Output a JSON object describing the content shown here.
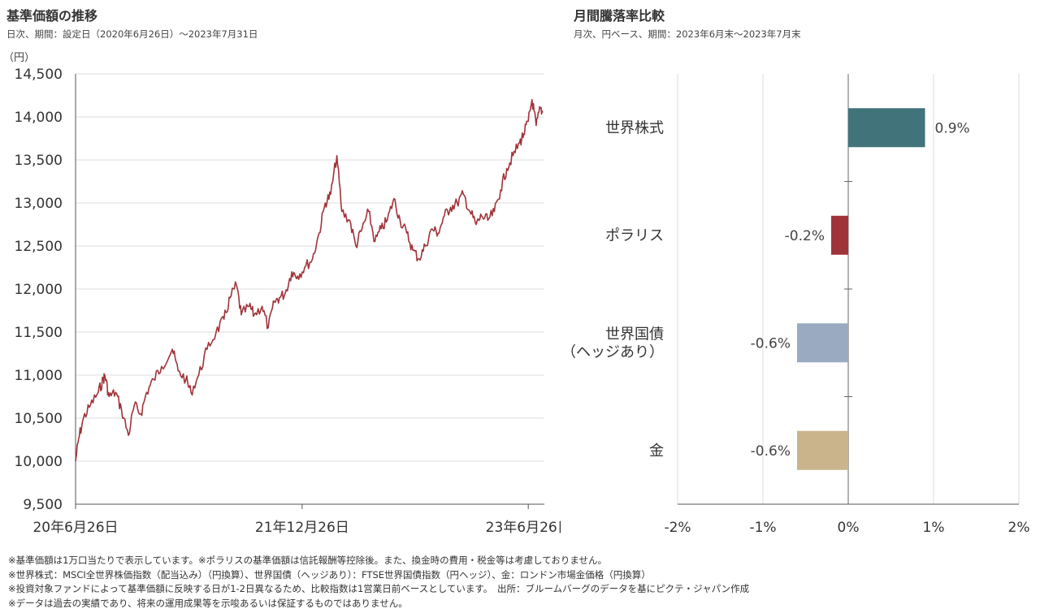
{
  "left_panel": {
    "title": "基準価額の推移",
    "subtitle": "日次、期間：設定日（2020年6月26日）～2023年7月31日",
    "unit": "（円）"
  },
  "right_panel": {
    "title": "月間騰落率比較",
    "subtitle": "月次、円ベース、期間：2023年6月末～2023年7月末"
  },
  "notes": [
    "※基準価額は1万口当たりで表示しています。※ポラリスの基準価額は信託報酬等控除後。また、換金時の費用・税金等は考慮しておりません。",
    "※世界株式：MSCI全世界株価指数（配当込み）（円換算）、世界国債（ヘッジあり）：FTSE世界国債指数（円ヘッジ）、金：ロンドン市場金価格（円換算）",
    "※投資対象ファンドによって基準価額に反映する日が1-2日異なるため、比較指数は1営業日前ベースとしています。　出所：ブルームバーグのデータを基にピクテ・ジャパン作成",
    "※データは過去の実績であり、将来の運用成果等を示唆あるいは保証するものではありません。"
  ],
  "chart_data": [
    {
      "type": "line",
      "series": [
        {
          "color": "#a0333a",
          "points": [
            [
              "2020-06-26",
              10000
            ],
            [
              "2020-07-03",
              10250
            ],
            [
              "2020-07-15",
              10500
            ],
            [
              "2020-08-01",
              10650
            ],
            [
              "2020-08-20",
              10800
            ],
            [
              "2020-09-01",
              10950
            ],
            [
              "2020-09-05",
              11000
            ],
            [
              "2020-09-15",
              10750
            ],
            [
              "2020-10-01",
              10800
            ],
            [
              "2020-10-15",
              10600
            ],
            [
              "2020-11-01",
              10300
            ],
            [
              "2020-11-15",
              10650
            ],
            [
              "2020-12-01",
              10550
            ],
            [
              "2020-12-15",
              10800
            ],
            [
              "2021-01-01",
              10950
            ],
            [
              "2021-01-20",
              11100
            ],
            [
              "2021-02-15",
              11300
            ],
            [
              "2021-03-01",
              11050
            ],
            [
              "2021-03-20",
              10950
            ],
            [
              "2021-04-01",
              10800
            ],
            [
              "2021-04-20",
              11000
            ],
            [
              "2021-05-10",
              11300
            ],
            [
              "2021-06-01",
              11500
            ],
            [
              "2021-06-20",
              11650
            ],
            [
              "2021-07-05",
              11900
            ],
            [
              "2021-07-20",
              12050
            ],
            [
              "2021-08-01",
              11700
            ],
            [
              "2021-08-20",
              11800
            ],
            [
              "2021-09-01",
              11700
            ],
            [
              "2021-09-20",
              11800
            ],
            [
              "2021-10-05",
              11550
            ],
            [
              "2021-10-20",
              11850
            ],
            [
              "2021-11-01",
              11900
            ],
            [
              "2021-11-15",
              11950
            ],
            [
              "2021-12-01",
              12200
            ],
            [
              "2021-12-15",
              12150
            ],
            [
              "2022-01-01",
              12250
            ],
            [
              "2022-01-20",
              12350
            ],
            [
              "2022-02-05",
              12650
            ],
            [
              "2022-02-20",
              13000
            ],
            [
              "2022-03-05",
              13100
            ],
            [
              "2022-03-20",
              13550
            ],
            [
              "2022-04-01",
              12900
            ],
            [
              "2022-04-20",
              12800
            ],
            [
              "2022-05-05",
              12500
            ],
            [
              "2022-05-20",
              12700
            ],
            [
              "2022-06-05",
              12900
            ],
            [
              "2022-06-20",
              12550
            ],
            [
              "2022-07-05",
              12700
            ],
            [
              "2022-07-20",
              12800
            ],
            [
              "2022-08-05",
              13050
            ],
            [
              "2022-08-20",
              12800
            ],
            [
              "2022-09-05",
              12650
            ],
            [
              "2022-09-20",
              12450
            ],
            [
              "2022-10-05",
              12350
            ],
            [
              "2022-10-20",
              12500
            ],
            [
              "2022-11-05",
              12700
            ],
            [
              "2022-11-20",
              12650
            ],
            [
              "2022-12-05",
              12850
            ],
            [
              "2022-12-20",
              12950
            ],
            [
              "2023-01-05",
              13000
            ],
            [
              "2023-01-20",
              13100
            ],
            [
              "2023-02-05",
              12900
            ],
            [
              "2023-02-20",
              12750
            ],
            [
              "2023-03-05",
              12850
            ],
            [
              "2023-03-20",
              12800
            ],
            [
              "2023-04-05",
              12900
            ],
            [
              "2023-04-20",
              13150
            ],
            [
              "2023-05-05",
              13400
            ],
            [
              "2023-05-20",
              13550
            ],
            [
              "2023-06-05",
              13700
            ],
            [
              "2023-06-15",
              13800
            ],
            [
              "2023-06-26",
              13950
            ],
            [
              "2023-07-05",
              14200
            ],
            [
              "2023-07-15",
              13900
            ],
            [
              "2023-07-25",
              14100
            ],
            [
              "2023-07-31",
              14050
            ]
          ]
        }
      ],
      "yticks": [
        "9,500",
        "10,000",
        "10,500",
        "11,000",
        "11,500",
        "12,000",
        "12,500",
        "13,000",
        "13,500",
        "14,000",
        "14,500"
      ],
      "xticks": [
        "20年6月26日",
        "21年12月26日",
        "23年6月26日"
      ],
      "ylim": [
        9500,
        14500
      ],
      "grid": true
    },
    {
      "type": "bar",
      "orientation": "horizontal",
      "categories": [
        [
          "世界株式"
        ],
        [
          "ポラリス"
        ],
        [
          "世界国債",
          "（ヘッジあり）"
        ],
        [
          "金"
        ]
      ],
      "values": [
        0.9,
        -0.2,
        -0.6,
        -0.6
      ],
      "value_labels": [
        "0.9%",
        "-0.2%",
        "-0.6%",
        "-0.6%"
      ],
      "colors": [
        "#41737a",
        "#a0333a",
        "#9aaac0",
        "#c9b48c"
      ],
      "xticks": [
        "-2%",
        "-1%",
        "0%",
        "1%",
        "2%"
      ],
      "xlim": [
        -2,
        2
      ],
      "grid": true
    }
  ]
}
